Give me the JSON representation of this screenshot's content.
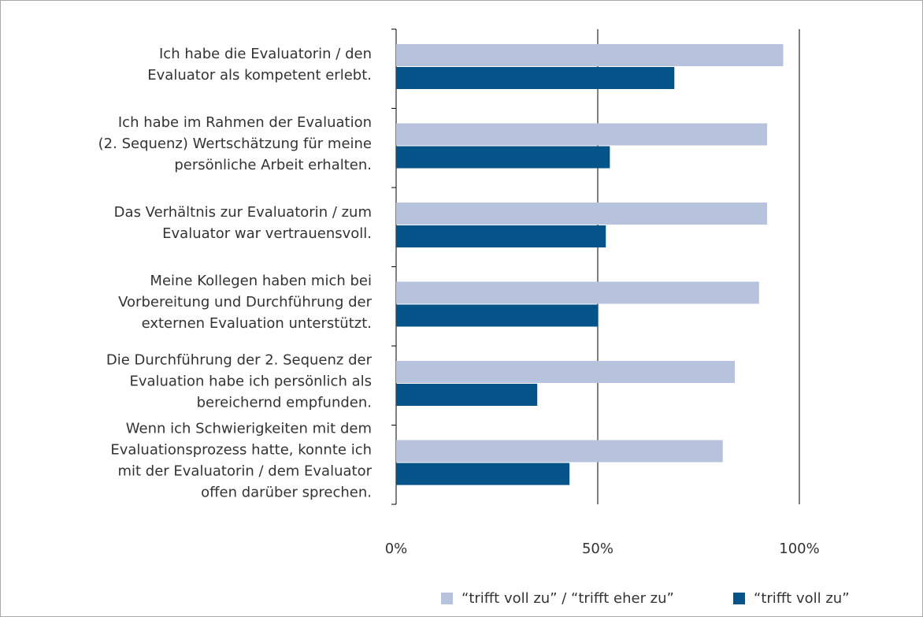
{
  "chart_data": {
    "type": "bar",
    "categories": [
      [
        "Ich habe die Evaluatorin / den",
        "Evaluator als kompetent erlebt."
      ],
      [
        "Ich habe im Rahmen der Evaluation",
        "(2. Sequenz) Wertschätzung für meine",
        "persönliche Arbeit erhalten."
      ],
      [
        "Das Verhältnis zur Evaluatorin / zum",
        "Evaluator war vertrauensvoll."
      ],
      [
        "Meine Kollegen haben mich bei",
        "Vorbereitung und Durchführung der",
        "externen Evaluation unterstützt."
      ],
      [
        "Die Durchführung der 2. Sequenz der",
        "Evaluation habe ich persönlich als",
        "bereichernd empfunden."
      ],
      [
        "Wenn ich Schwierigkeiten mit dem",
        "Evaluationsprozess hatte, konnte ich",
        "mit der Evaluatorin / dem Evaluator",
        "offen darüber sprechen."
      ]
    ],
    "series": [
      {
        "name": "“trifft voll zu” / “trifft eher zu”",
        "color": "#b7c2dd",
        "values": [
          96,
          92,
          92,
          90,
          84,
          81
        ]
      },
      {
        "name": "“trifft voll zu”",
        "color": "#04548a",
        "values": [
          69,
          53,
          52,
          50,
          35,
          43
        ]
      }
    ],
    "xlim": [
      0,
      100
    ],
    "xticks": [
      {
        "value": 0,
        "label": "0%"
      },
      {
        "value": 50,
        "label": "50%"
      },
      {
        "value": 100,
        "label": "100%"
      }
    ],
    "grid": true,
    "legend": "bottom"
  }
}
